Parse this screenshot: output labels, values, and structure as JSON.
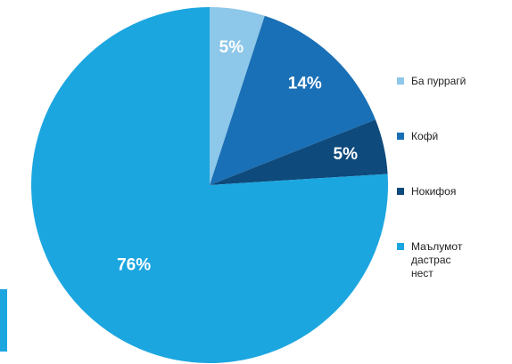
{
  "chart_data": {
    "type": "pie",
    "categories": [
      "Ба пуррагӣ",
      "Кофӣ",
      "Нокифоя",
      "Маълумот дастрас нест"
    ],
    "values": [
      5,
      14,
      5,
      76
    ],
    "value_labels": [
      "5%",
      "14%",
      "5%",
      "76%"
    ],
    "colors": [
      "#8dc7e9",
      "#1a70b6",
      "#0e4a7c",
      "#1ca6e0"
    ],
    "legend": "right"
  }
}
